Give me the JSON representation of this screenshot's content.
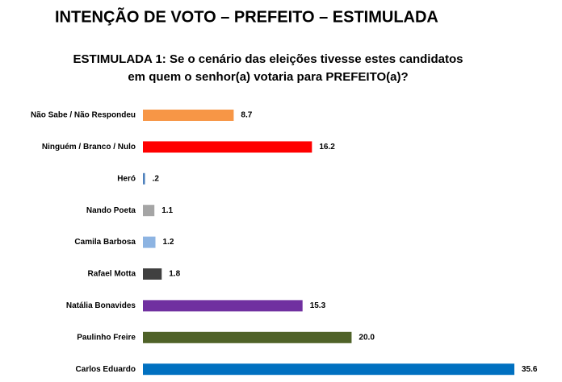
{
  "chart_data": {
    "type": "hbar",
    "title": "INTENÇÃO DE VOTO – PREFEITO – ESTIMULADA",
    "subtitle": [
      "ESTIMULADA 1: Se o cenário das eleições tivesse estes candidatos",
      "em quem o senhor(a) votaria para PREFEITO(a)?"
    ],
    "categories": [
      "Não Sabe / Não Respondeu",
      "Ninguém / Branco / Nulo",
      "Heró",
      "Nando Poeta",
      "Camila Barbosa",
      "Rafael Motta",
      "Natália Bonavides",
      "Paulinho Freire",
      "Carlos Eduardo"
    ],
    "values": [
      8.7,
      16.2,
      0.2,
      1.1,
      1.2,
      1.8,
      15.3,
      20.0,
      35.6
    ],
    "value_labels": [
      "8.7",
      "16.2",
      ".2",
      "1.1",
      "1.2",
      "1.8",
      "15.3",
      "20.0",
      "35.6"
    ],
    "colors": [
      "#f79646",
      "#ff0000",
      "#4f81bd",
      "#a5a5a5",
      "#8db4e2",
      "#404040",
      "#7030a0",
      "#4f6228",
      "#0070c0"
    ]
  }
}
